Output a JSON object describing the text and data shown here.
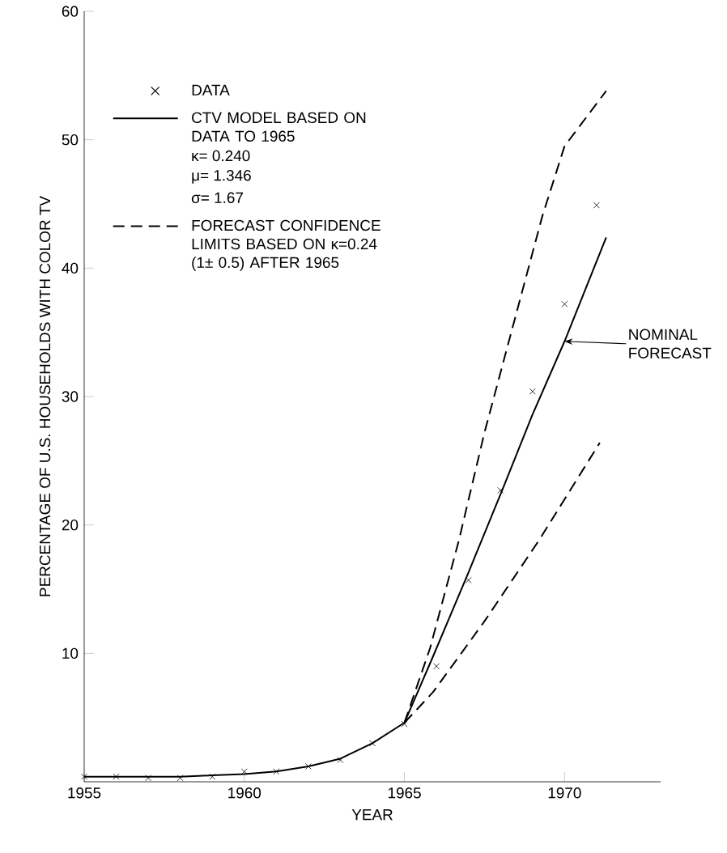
{
  "chart_data": {
    "type": "line",
    "xlabel": "YEAR",
    "ylabel": "PERCENTAGE OF U.S. HOUSEHOLDS WITH COLOR TV",
    "xlim": [
      1955,
      1973
    ],
    "ylim": [
      0,
      60
    ],
    "xticks": [
      1955,
      1960,
      1965,
      1970
    ],
    "yticks": [
      10,
      20,
      30,
      40,
      50,
      60
    ],
    "legend": "top left",
    "series": [
      {
        "name": "DATA",
        "type": "scatter",
        "marker": "cross",
        "color": "#000000",
        "x": [
          1955,
          1956,
          1957,
          1958,
          1959,
          1960,
          1961,
          1962,
          1963,
          1964,
          1965,
          1966,
          1967,
          1968,
          1969,
          1970,
          1971
        ],
        "values": [
          0.4,
          0.4,
          0.3,
          0.3,
          0.4,
          0.8,
          0.8,
          1.2,
          1.7,
          3.0,
          4.5,
          9.0,
          15.7,
          22.7,
          30.4,
          37.2,
          44.9
        ]
      },
      {
        "name": "CTV MODEL BASED ON DATA TO 1965",
        "line_style": "solid",
        "color": "#000000",
        "x": [
          1955,
          1956,
          1957,
          1958,
          1959,
          1960,
          1961,
          1962,
          1963,
          1964,
          1965,
          1965.9,
          1967,
          1968.1,
          1969,
          1970,
          1971.3
        ],
        "values": [
          0.4,
          0.4,
          0.4,
          0.4,
          0.5,
          0.6,
          0.8,
          1.2,
          1.8,
          3.0,
          4.6,
          9.8,
          16.3,
          23.0,
          28.6,
          34.3,
          42.4
        ]
      },
      {
        "name": "FORECAST CONFIDENCE LIMITS BASED ON κ=0.24 (1± 0.5) AFTER 1965",
        "line_style": "dashed",
        "color": "#000000",
        "x": [
          1965,
          1965.8,
          1966.7,
          1967.5,
          1968.4,
          1969.3,
          1970,
          1971.3
        ],
        "values": [
          4.6,
          10.4,
          18.8,
          27.2,
          35.6,
          44.0,
          49.5,
          53.8
        ]
      },
      {
        "line_style": "dashed",
        "color": "#000000",
        "x": [
          1965,
          1965.9,
          1967.5,
          1969.2,
          1971.1
        ],
        "values": [
          4.6,
          7.0,
          12.5,
          18.8,
          26.4
        ]
      }
    ],
    "annotations": [
      "κ= 0.240",
      "μ= 1.346",
      "σ= 1.67",
      "NOMINAL FORECAST"
    ]
  }
}
